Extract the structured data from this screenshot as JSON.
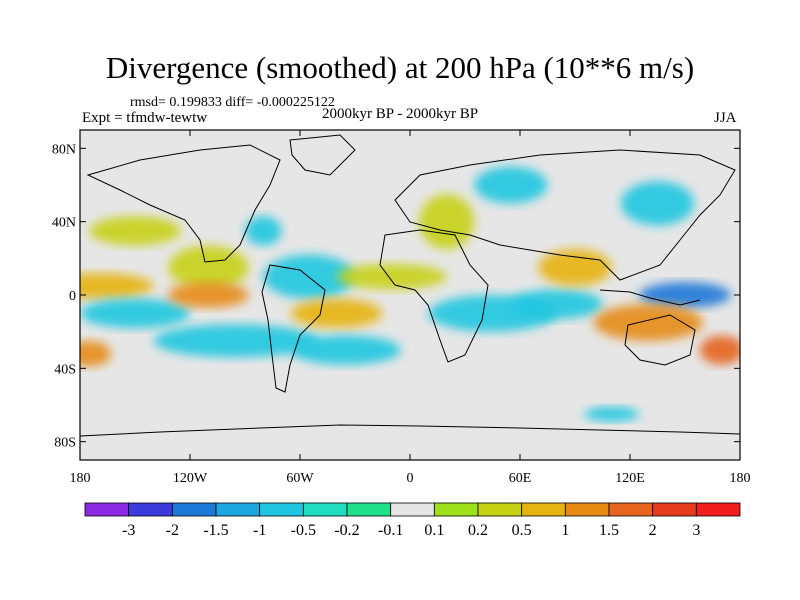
{
  "title": "Divergence (smoothed) at 200 hPa (10**6 m/s)",
  "stats_label": "rmsd= 0.199833 diff= -0.000225122",
  "experiment_label": "Expt = tfmdw-tewtw",
  "period_label": "2000kyr BP - 2000kyr BP",
  "season_label": "JJA",
  "chart_data": {
    "type": "heatmap",
    "title": "Divergence (smoothed) at 200 hPa (10**6 m/s)",
    "variable": "Divergence (smoothed) at 200 hPa",
    "units": "10**6 m/s",
    "x_ticks": [
      "180",
      "120W",
      "60W",
      "0",
      "60E",
      "120E",
      "180"
    ],
    "x_tick_values": [
      -180,
      -120,
      -60,
      0,
      60,
      120,
      180
    ],
    "y_ticks": [
      "80N",
      "40N",
      "0",
      "40S",
      "80S"
    ],
    "y_tick_values": [
      80,
      40,
      0,
      -40,
      -80
    ],
    "xlim": [
      -180,
      180
    ],
    "ylim": [
      -90,
      90
    ],
    "colorbar": {
      "labels": [
        "-3",
        "-2",
        "-1.5",
        "-1",
        "-0.5",
        "-0.2",
        "-0.1",
        "0.1",
        "0.2",
        "0.5",
        "1",
        "1.5",
        "2",
        "3"
      ],
      "colors": [
        "#8a2be2",
        "#3c3cdc",
        "#1e78d8",
        "#1ea6e0",
        "#20c6e0",
        "#22dcc0",
        "#1ee08c",
        "#e6e6e6",
        "#9ee01a",
        "#c8d214",
        "#e6b410",
        "#e68c14",
        "#e6641e",
        "#e63c1e",
        "#f01e1e"
      ]
    },
    "anomalies": [
      {
        "lon": -150,
        "lat": 35,
        "rx": 25,
        "ry": 8,
        "level": "0.2"
      },
      {
        "lon": -170,
        "lat": 5,
        "rx": 30,
        "ry": 7,
        "level": "0.5"
      },
      {
        "lon": -175,
        "lat": -32,
        "rx": 12,
        "ry": 7,
        "level": "1"
      },
      {
        "lon": -150,
        "lat": -10,
        "rx": 30,
        "ry": 8,
        "level": "-0.5"
      },
      {
        "lon": -110,
        "lat": 15,
        "rx": 22,
        "ry": 12,
        "level": "0.2"
      },
      {
        "lon": -110,
        "lat": 0,
        "rx": 22,
        "ry": 7,
        "level": "1"
      },
      {
        "lon": -95,
        "lat": -25,
        "rx": 45,
        "ry": 9,
        "level": "-0.5"
      },
      {
        "lon": -80,
        "lat": 35,
        "rx": 10,
        "ry": 8,
        "level": "-0.5"
      },
      {
        "lon": -55,
        "lat": 10,
        "rx": 25,
        "ry": 12,
        "level": "-0.5"
      },
      {
        "lon": -40,
        "lat": -10,
        "rx": 25,
        "ry": 8,
        "level": "0.5"
      },
      {
        "lon": -35,
        "lat": -30,
        "rx": 30,
        "ry": 8,
        "level": "-0.5"
      },
      {
        "lon": -10,
        "lat": 10,
        "rx": 30,
        "ry": 7,
        "level": "0.2"
      },
      {
        "lon": 20,
        "lat": 40,
        "rx": 15,
        "ry": 15,
        "level": "0.2"
      },
      {
        "lon": 55,
        "lat": 60,
        "rx": 20,
        "ry": 10,
        "level": "-0.5"
      },
      {
        "lon": 45,
        "lat": -10,
        "rx": 35,
        "ry": 10,
        "level": "-0.5"
      },
      {
        "lon": 80,
        "lat": -5,
        "rx": 25,
        "ry": 8,
        "level": "-0.5"
      },
      {
        "lon": 90,
        "lat": 15,
        "rx": 20,
        "ry": 10,
        "level": "0.5"
      },
      {
        "lon": 135,
        "lat": 50,
        "rx": 20,
        "ry": 12,
        "level": "-0.5"
      },
      {
        "lon": 150,
        "lat": 0,
        "rx": 25,
        "ry": 7,
        "level": "-1.5"
      },
      {
        "lon": 130,
        "lat": -15,
        "rx": 30,
        "ry": 10,
        "level": "1"
      },
      {
        "lon": 170,
        "lat": -30,
        "rx": 12,
        "ry": 8,
        "level": "1.5"
      },
      {
        "lon": 110,
        "lat": -65,
        "rx": 15,
        "ry": 4,
        "level": "-0.5"
      }
    ]
  }
}
